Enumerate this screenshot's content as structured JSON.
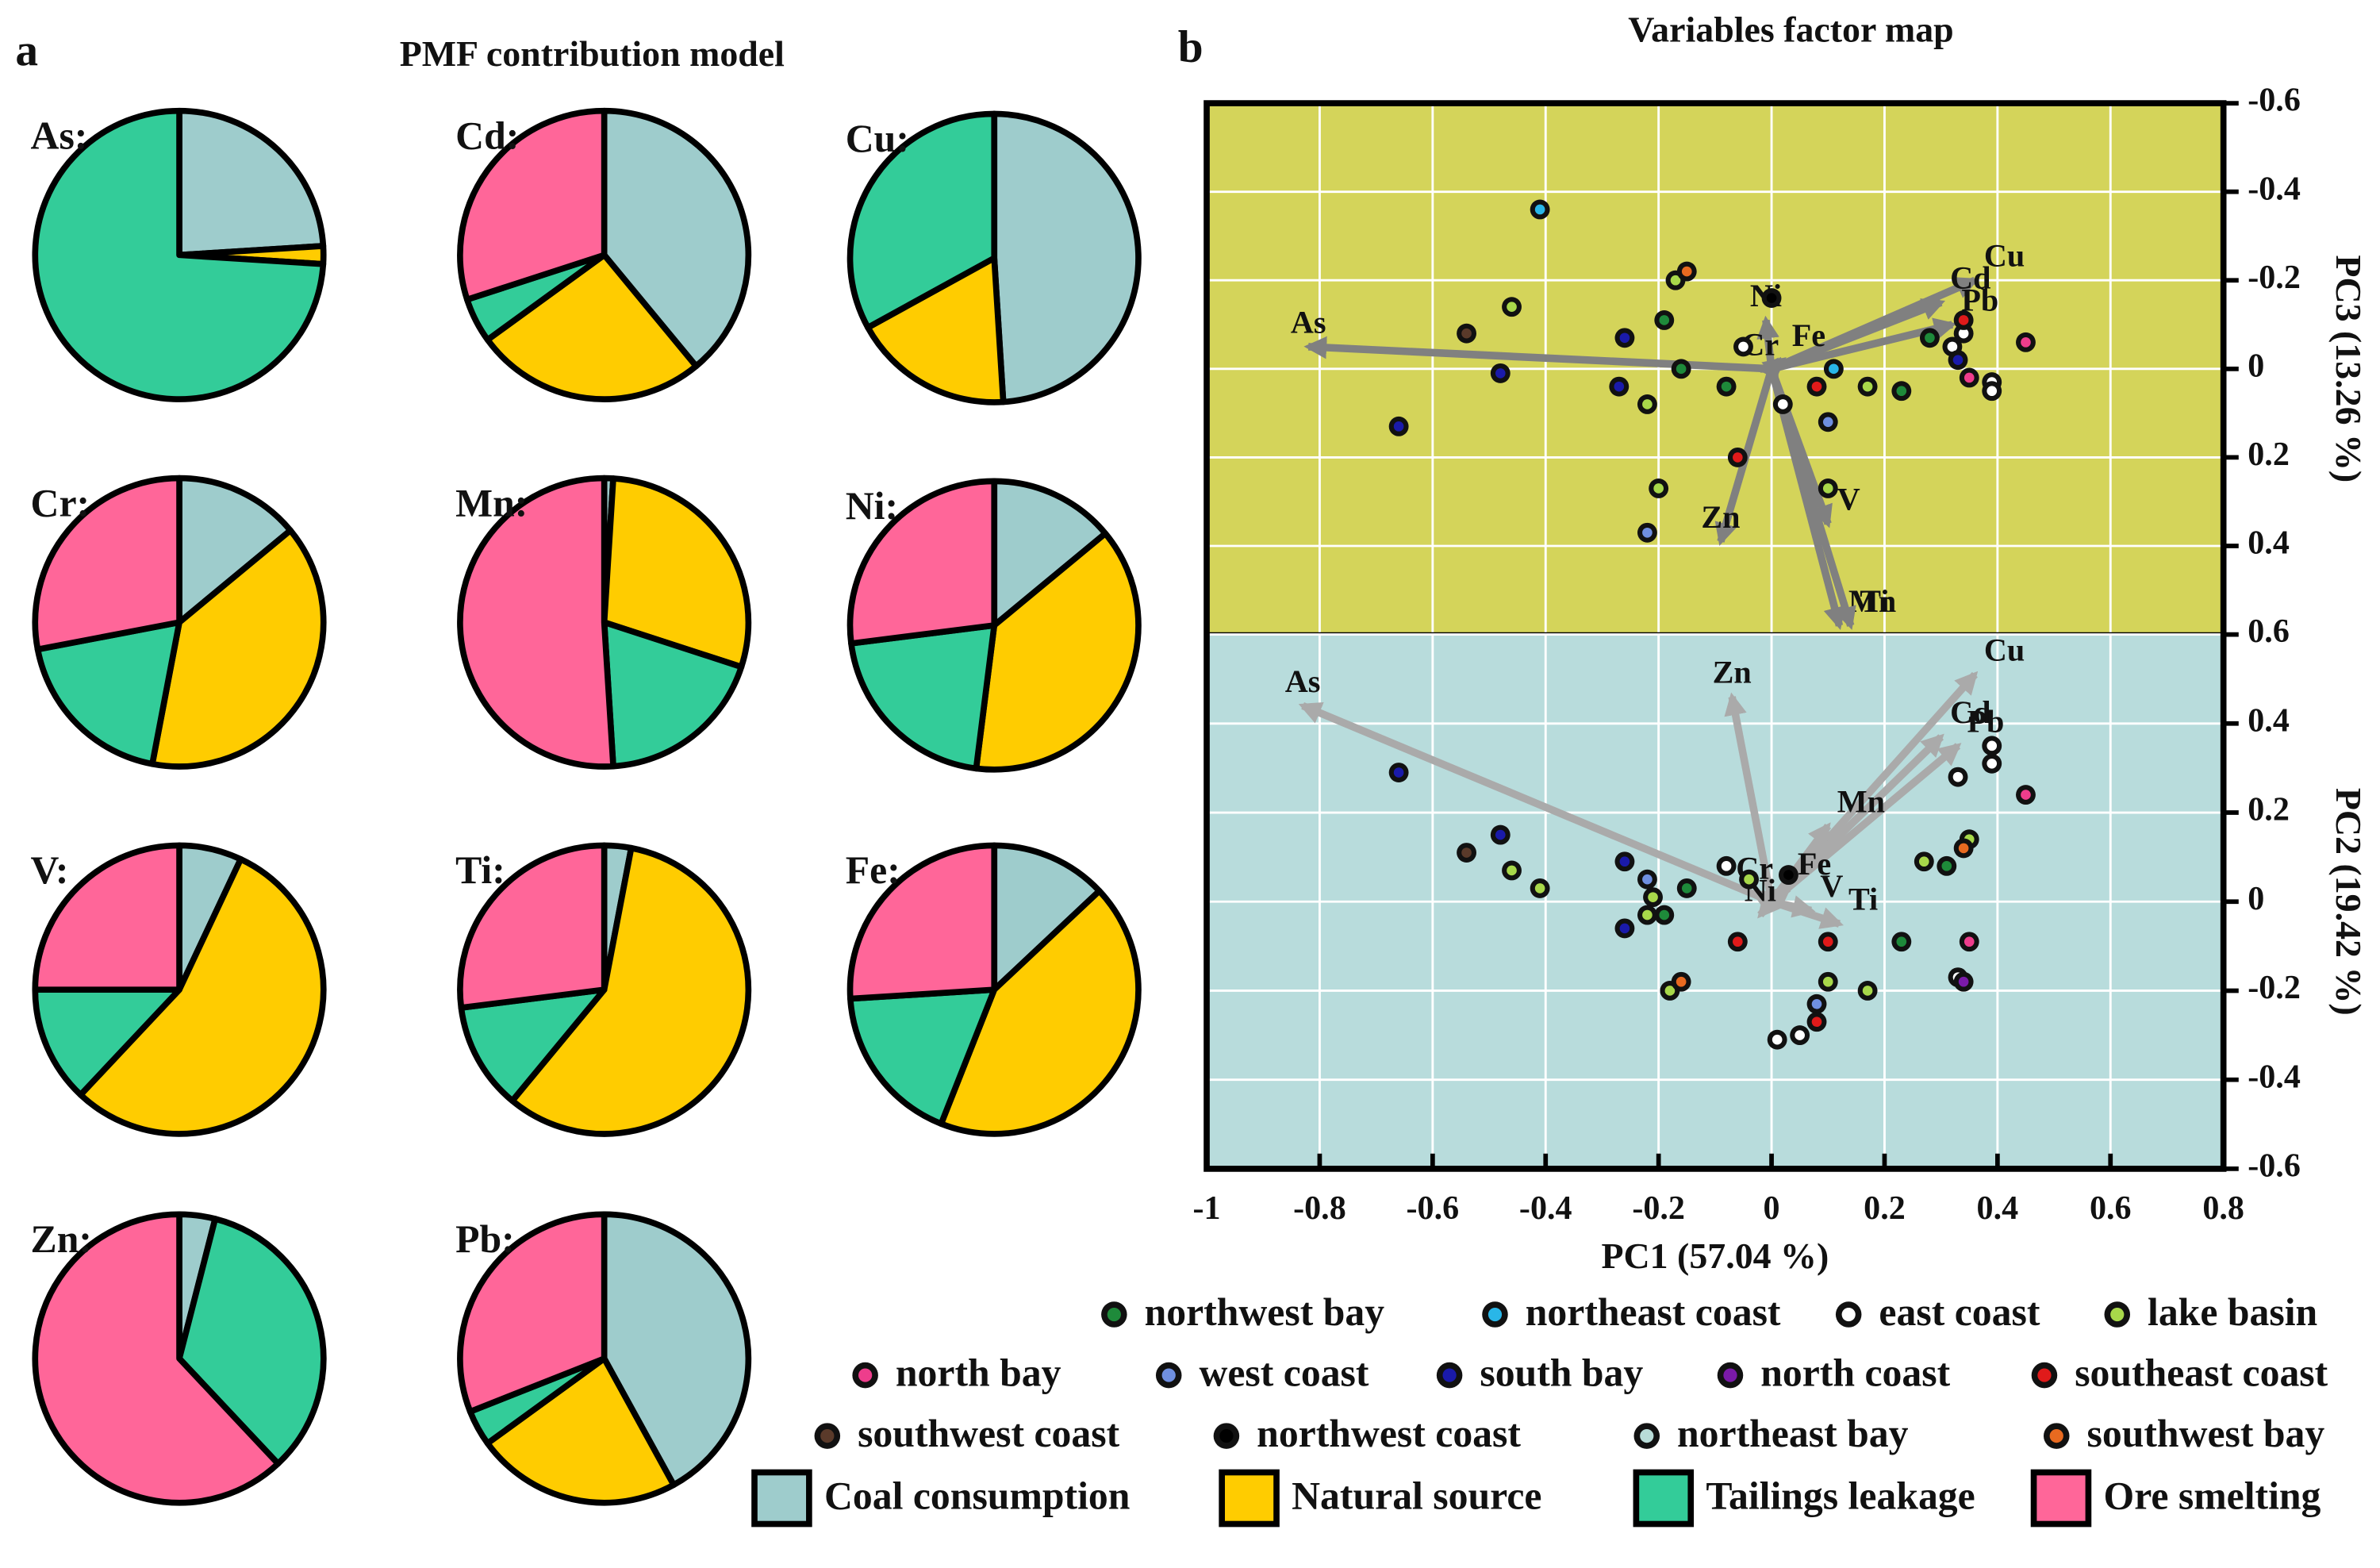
{
  "chart_data": [
    {
      "type": "pie",
      "panel_label": "a",
      "title": "PMF contribution model",
      "sources": [
        "Coal consumption",
        "Natural source",
        "Tailings leakage",
        "Ore smelting"
      ],
      "colors": [
        "#9ecccc",
        "#ffcc00",
        "#33cc99",
        "#ff6699"
      ],
      "pies": [
        {
          "label": "As:",
          "values": [
            24,
            2,
            74,
            0
          ]
        },
        {
          "label": "Cd:",
          "values": [
            39,
            26,
            5,
            30
          ]
        },
        {
          "label": "Cu:",
          "values": [
            49,
            18,
            33,
            0
          ]
        },
        {
          "label": "Cr:",
          "values": [
            14,
            39,
            19,
            28
          ]
        },
        {
          "label": "Mn:",
          "values": [
            1,
            29,
            19,
            51
          ]
        },
        {
          "label": "Ni:",
          "values": [
            14,
            38,
            21,
            27
          ]
        },
        {
          "label": "V:",
          "values": [
            7,
            55,
            13,
            25
          ]
        },
        {
          "label": "Ti:",
          "values": [
            3,
            58,
            12,
            27
          ]
        },
        {
          "label": "Fe:",
          "values": [
            13,
            43,
            18,
            26
          ]
        },
        {
          "label": "Zn:",
          "values": [
            4,
            0,
            34,
            62
          ]
        },
        {
          "label": "Pb:",
          "values": [
            42,
            23,
            4,
            31
          ]
        }
      ]
    },
    {
      "type": "biplot",
      "panel_label": "b",
      "title": "Variables factor map",
      "xlabel": "PC1 (57.04 %)",
      "xlim": [
        -1,
        0.8
      ],
      "xticks": [
        -1,
        -0.8,
        -0.6,
        -0.4,
        -0.2,
        0,
        0.2,
        0.4,
        0.6,
        0.8
      ],
      "grid": true,
      "groups": [
        {
          "name": "northwest bay",
          "color": "#1e8a3a"
        },
        {
          "name": "northeast coast",
          "color": "#29b6e8"
        },
        {
          "name": "east coast",
          "color": "#ffffff"
        },
        {
          "name": "lake basin",
          "color": "#a8d84a"
        },
        {
          "name": "north bay",
          "color": "#ee3d8c"
        },
        {
          "name": "west coast",
          "color": "#6f8fe0"
        },
        {
          "name": "south bay",
          "color": "#1a1aaa"
        },
        {
          "name": "north coast",
          "color": "#7a1aa8"
        },
        {
          "name": "southeast coast",
          "color": "#e01a1a"
        },
        {
          "name": "southwest coast",
          "color": "#5a3a2a"
        },
        {
          "name": "northwest coast",
          "color": "#000000"
        },
        {
          "name": "northeast bay",
          "color": "#b8dcd8"
        },
        {
          "name": "southwest bay",
          "color": "#e86a20"
        }
      ],
      "panels": [
        {
          "ylabel": "PC3 (13.26 %)",
          "ylim": [
            0.6,
            -0.6
          ],
          "yticks": [
            -0.6,
            -0.4,
            -0.2,
            0,
            0.2,
            0.4
          ],
          "background": "#d4d45a",
          "arrow_color": "#808080",
          "loadings": [
            {
              "name": "As",
              "x": -0.82,
              "y": -0.05
            },
            {
              "name": "Cu",
              "x": 0.36,
              "y": -0.2
            },
            {
              "name": "Cd",
              "x": 0.3,
              "y": -0.15
            },
            {
              "name": "Pb",
              "x": 0.32,
              "y": -0.1
            },
            {
              "name": "Ni",
              "x": -0.01,
              "y": -0.11
            },
            {
              "name": "Fe",
              "x": 0.02,
              "y": -0.02
            },
            {
              "name": "Cr",
              "x": -0.02,
              "y": 0.0
            },
            {
              "name": "Zn",
              "x": -0.09,
              "y": 0.39
            },
            {
              "name": "V",
              "x": 0.1,
              "y": 0.35
            },
            {
              "name": "Mn",
              "x": 0.12,
              "y": 0.58
            },
            {
              "name": "Ti",
              "x": 0.14,
              "y": 0.58
            }
          ],
          "series": [
            {
              "x": [
                -0.19,
                0.28,
                -0.16,
                -0.08,
                0.23
              ],
              "y": [
                -0.11,
                -0.07,
                0.0,
                0.04,
                0.05
              ]
            },
            {
              "x": [
                -0.41,
                0.11
              ],
              "y": [
                -0.36,
                0.0
              ]
            },
            {
              "x": [
                -0.05,
                0.32,
                0.34,
                0.39,
                0.39,
                0.02
              ],
              "y": [
                -0.05,
                -0.05,
                -0.08,
                0.03,
                0.05,
                0.08
              ]
            },
            {
              "x": [
                -0.17,
                -0.46,
                0.17,
                -0.22,
                0.1,
                -0.2
              ],
              "y": [
                -0.2,
                -0.14,
                0.04,
                0.08,
                0.27,
                0.27
              ]
            },
            {
              "x": [
                0.45,
                0.35
              ],
              "y": [
                -0.06,
                0.02
              ]
            },
            {
              "x": [
                0.1,
                -0.22
              ],
              "y": [
                0.12,
                0.37
              ]
            },
            {
              "x": [
                -0.26,
                0.33,
                -0.27,
                -0.48,
                -0.66
              ],
              "y": [
                -0.07,
                -0.02,
                0.04,
                0.01,
                0.13
              ]
            },
            {
              "x": [],
              "y": []
            },
            {
              "x": [
                0.34,
                0.08,
                -0.06
              ],
              "y": [
                -0.11,
                0.04,
                0.2
              ]
            },
            {
              "x": [
                -0.54
              ],
              "y": [
                -0.08
              ]
            },
            {
              "x": [
                0.0
              ],
              "y": [
                -0.16
              ]
            },
            {
              "x": [],
              "y": []
            },
            {
              "x": [
                -0.15
              ],
              "y": [
                -0.22
              ]
            }
          ]
        },
        {
          "ylabel": "PC2 (19.42 %)",
          "ylim": [
            -0.6,
            0.6
          ],
          "yticks": [
            0.6,
            0.4,
            0.2,
            0,
            -0.2,
            -0.4,
            -0.6
          ],
          "background": "#b8dcdc",
          "arrow_color": "#aaaaaa",
          "loadings": [
            {
              "name": "As",
              "x": -0.83,
              "y": 0.44
            },
            {
              "name": "Zn",
              "x": -0.07,
              "y": 0.46
            },
            {
              "name": "Cu",
              "x": 0.36,
              "y": 0.51
            },
            {
              "name": "Cd",
              "x": 0.3,
              "y": 0.37
            },
            {
              "name": "Pb",
              "x": 0.33,
              "y": 0.35
            },
            {
              "name": "Mn",
              "x": 0.1,
              "y": 0.17
            },
            {
              "name": "Fe",
              "x": 0.03,
              "y": 0.03
            },
            {
              "name": "V",
              "x": 0.07,
              "y": -0.02
            },
            {
              "name": "Ti",
              "x": 0.12,
              "y": -0.05
            },
            {
              "name": "Cr",
              "x": -0.03,
              "y": 0.02
            },
            {
              "name": "Ni",
              "x": -0.02,
              "y": -0.03
            }
          ],
          "series": [
            {
              "x": [
                -0.19,
                -0.15,
                0.23,
                0.31
              ],
              "y": [
                -0.03,
                0.03,
                -0.09,
                0.08
              ]
            },
            {
              "x": [],
              "y": []
            },
            {
              "x": [
                -0.08,
                0.05,
                0.01,
                0.33,
                0.39,
                0.39,
                0.33
              ],
              "y": [
                0.08,
                -0.3,
                -0.31,
                0.28,
                0.31,
                0.35,
                -0.17
              ]
            },
            {
              "x": [
                -0.46,
                -0.41,
                -0.21,
                -0.22,
                -0.04,
                -0.18,
                0.1,
                0.17,
                0.27,
                0.35
              ],
              "y": [
                0.07,
                0.03,
                0.01,
                -0.03,
                0.05,
                -0.2,
                -0.18,
                -0.2,
                0.09,
                0.14
              ]
            },
            {
              "x": [
                0.45,
                0.35
              ],
              "y": [
                0.24,
                -0.09
              ]
            },
            {
              "x": [
                -0.22,
                0.08
              ],
              "y": [
                0.05,
                -0.23
              ]
            },
            {
              "x": [
                -0.66,
                -0.48,
                -0.26,
                -0.26
              ],
              "y": [
                0.29,
                0.15,
                0.09,
                -0.06
              ]
            },
            {
              "x": [
                0.34
              ],
              "y": [
                -0.18
              ]
            },
            {
              "x": [
                0.1,
                -0.06,
                0.08
              ],
              "y": [
                -0.09,
                -0.09,
                -0.27
              ]
            },
            {
              "x": [
                -0.54
              ],
              "y": [
                0.11
              ]
            },
            {
              "x": [
                0.03
              ],
              "y": [
                0.06
              ]
            },
            {
              "x": [],
              "y": []
            },
            {
              "x": [
                -0.16,
                0.34
              ],
              "y": [
                -0.18,
                0.12
              ]
            }
          ]
        }
      ]
    }
  ]
}
